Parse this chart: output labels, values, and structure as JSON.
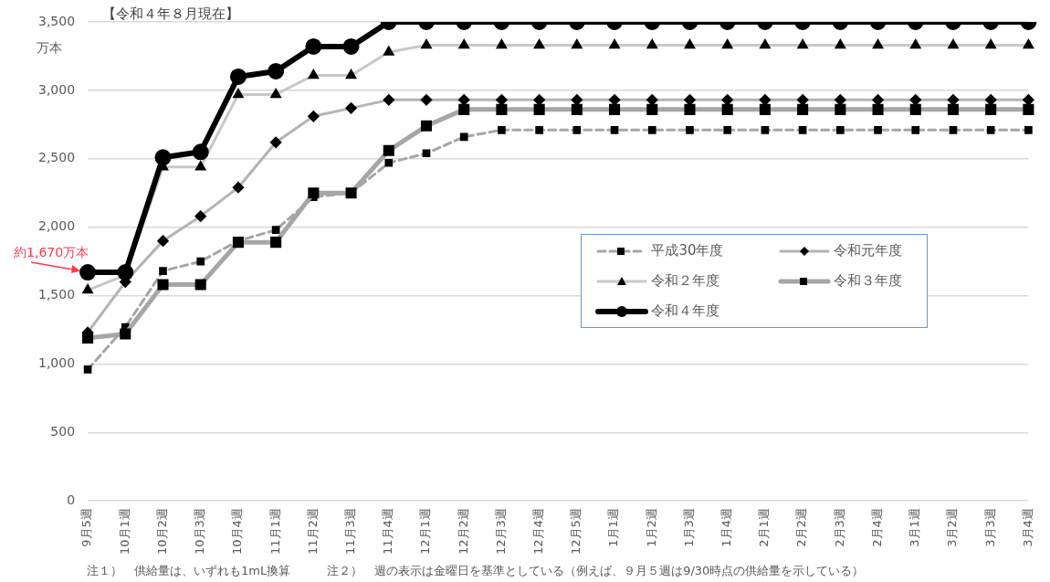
{
  "chart_data": {
    "type": "line",
    "title": "【令和４年８月現在】",
    "ylabel": "万本",
    "categories": [
      "9月5週",
      "10月1週",
      "10月2週",
      "10月3週",
      "10月4週",
      "11月1週",
      "11月2週",
      "11月3週",
      "11月4週",
      "12月1週",
      "12月2週",
      "12月3週",
      "12月4週",
      "12月5週",
      "1月1週",
      "1月2週",
      "1月3週",
      "1月4週",
      "2月1週",
      "2月2週",
      "2月3週",
      "2月4週",
      "3月1週",
      "3月2週",
      "3月3週",
      "3月4週"
    ],
    "series": [
      {
        "name": "平成30年度",
        "color": "#a6a6a6",
        "marker": "square",
        "line_style": "dashed",
        "values": [
          960,
          1270,
          1680,
          1750,
          1900,
          1980,
          2220,
          2250,
          2470,
          2540,
          2660,
          2710,
          2710,
          2710,
          2710,
          2710,
          2710,
          2710,
          2710,
          2710,
          2710,
          2710,
          2710,
          2710,
          2710,
          2710
        ]
      },
      {
        "name": "令和元年度",
        "color": "#b4b4b4",
        "marker": "diamond",
        "line_style": "solid",
        "values": [
          1230,
          1600,
          1900,
          2080,
          2290,
          2620,
          2810,
          2870,
          2930,
          2930,
          2930,
          2930,
          2930,
          2930,
          2930,
          2930,
          2930,
          2930,
          2930,
          2930,
          2930,
          2930,
          2930,
          2930,
          2930,
          2930
        ]
      },
      {
        "name": "令和２年度",
        "color": "#c8c8c8",
        "marker": "triangle",
        "line_style": "solid",
        "values": [
          1540,
          1650,
          2440,
          2440,
          2970,
          2970,
          3110,
          3110,
          3280,
          3330,
          3330,
          3330,
          3330,
          3330,
          3330,
          3330,
          3330,
          3330,
          3330,
          3330,
          3330,
          3330,
          3330,
          3330,
          3330,
          3330
        ]
      },
      {
        "name": "令和３年度",
        "color": "#a6a6a6",
        "marker": "square",
        "line_style": "solid",
        "values": [
          1190,
          1220,
          1580,
          1580,
          1890,
          1890,
          2250,
          2250,
          2560,
          2740,
          2860,
          2860,
          2860,
          2860,
          2860,
          2860,
          2860,
          2860,
          2860,
          2860,
          2860,
          2860,
          2860,
          2860,
          2860,
          2860
        ]
      },
      {
        "name": "令和４年度",
        "color": "#000000",
        "marker": "circle",
        "line_style": "solid",
        "values": [
          1670,
          1670,
          2510,
          2550,
          3100,
          3140,
          3320,
          3320,
          3500,
          3500,
          3500,
          3500,
          3500,
          3500,
          3500,
          3500,
          3500,
          3500,
          3500,
          3500,
          3500,
          3500,
          3500,
          3500,
          3500,
          3500
        ]
      }
    ],
    "ylim": [
      0,
      3500
    ],
    "yticks": [
      0,
      500,
      {
        "value": 1000,
        "label": "1,000"
      },
      {
        "value": 1500,
        "label": "1,500"
      },
      {
        "value": 2000,
        "label": "2,000"
      },
      {
        "value": 2500,
        "label": "2,500"
      },
      {
        "value": 3000,
        "label": "3,000"
      },
      {
        "value": 3500,
        "label": "3,500"
      }
    ],
    "grid": "y",
    "legend": "right",
    "annotations": [
      {
        "text": "約1,670万本",
        "x": "9月5週",
        "y": 1670
      },
      "注１）　供給量は、いずれも1mL換算",
      "注２）　週の表示は金曜日を基準としている（例えば、９月５週は9/30時点の供給量を示している）"
    ]
  }
}
